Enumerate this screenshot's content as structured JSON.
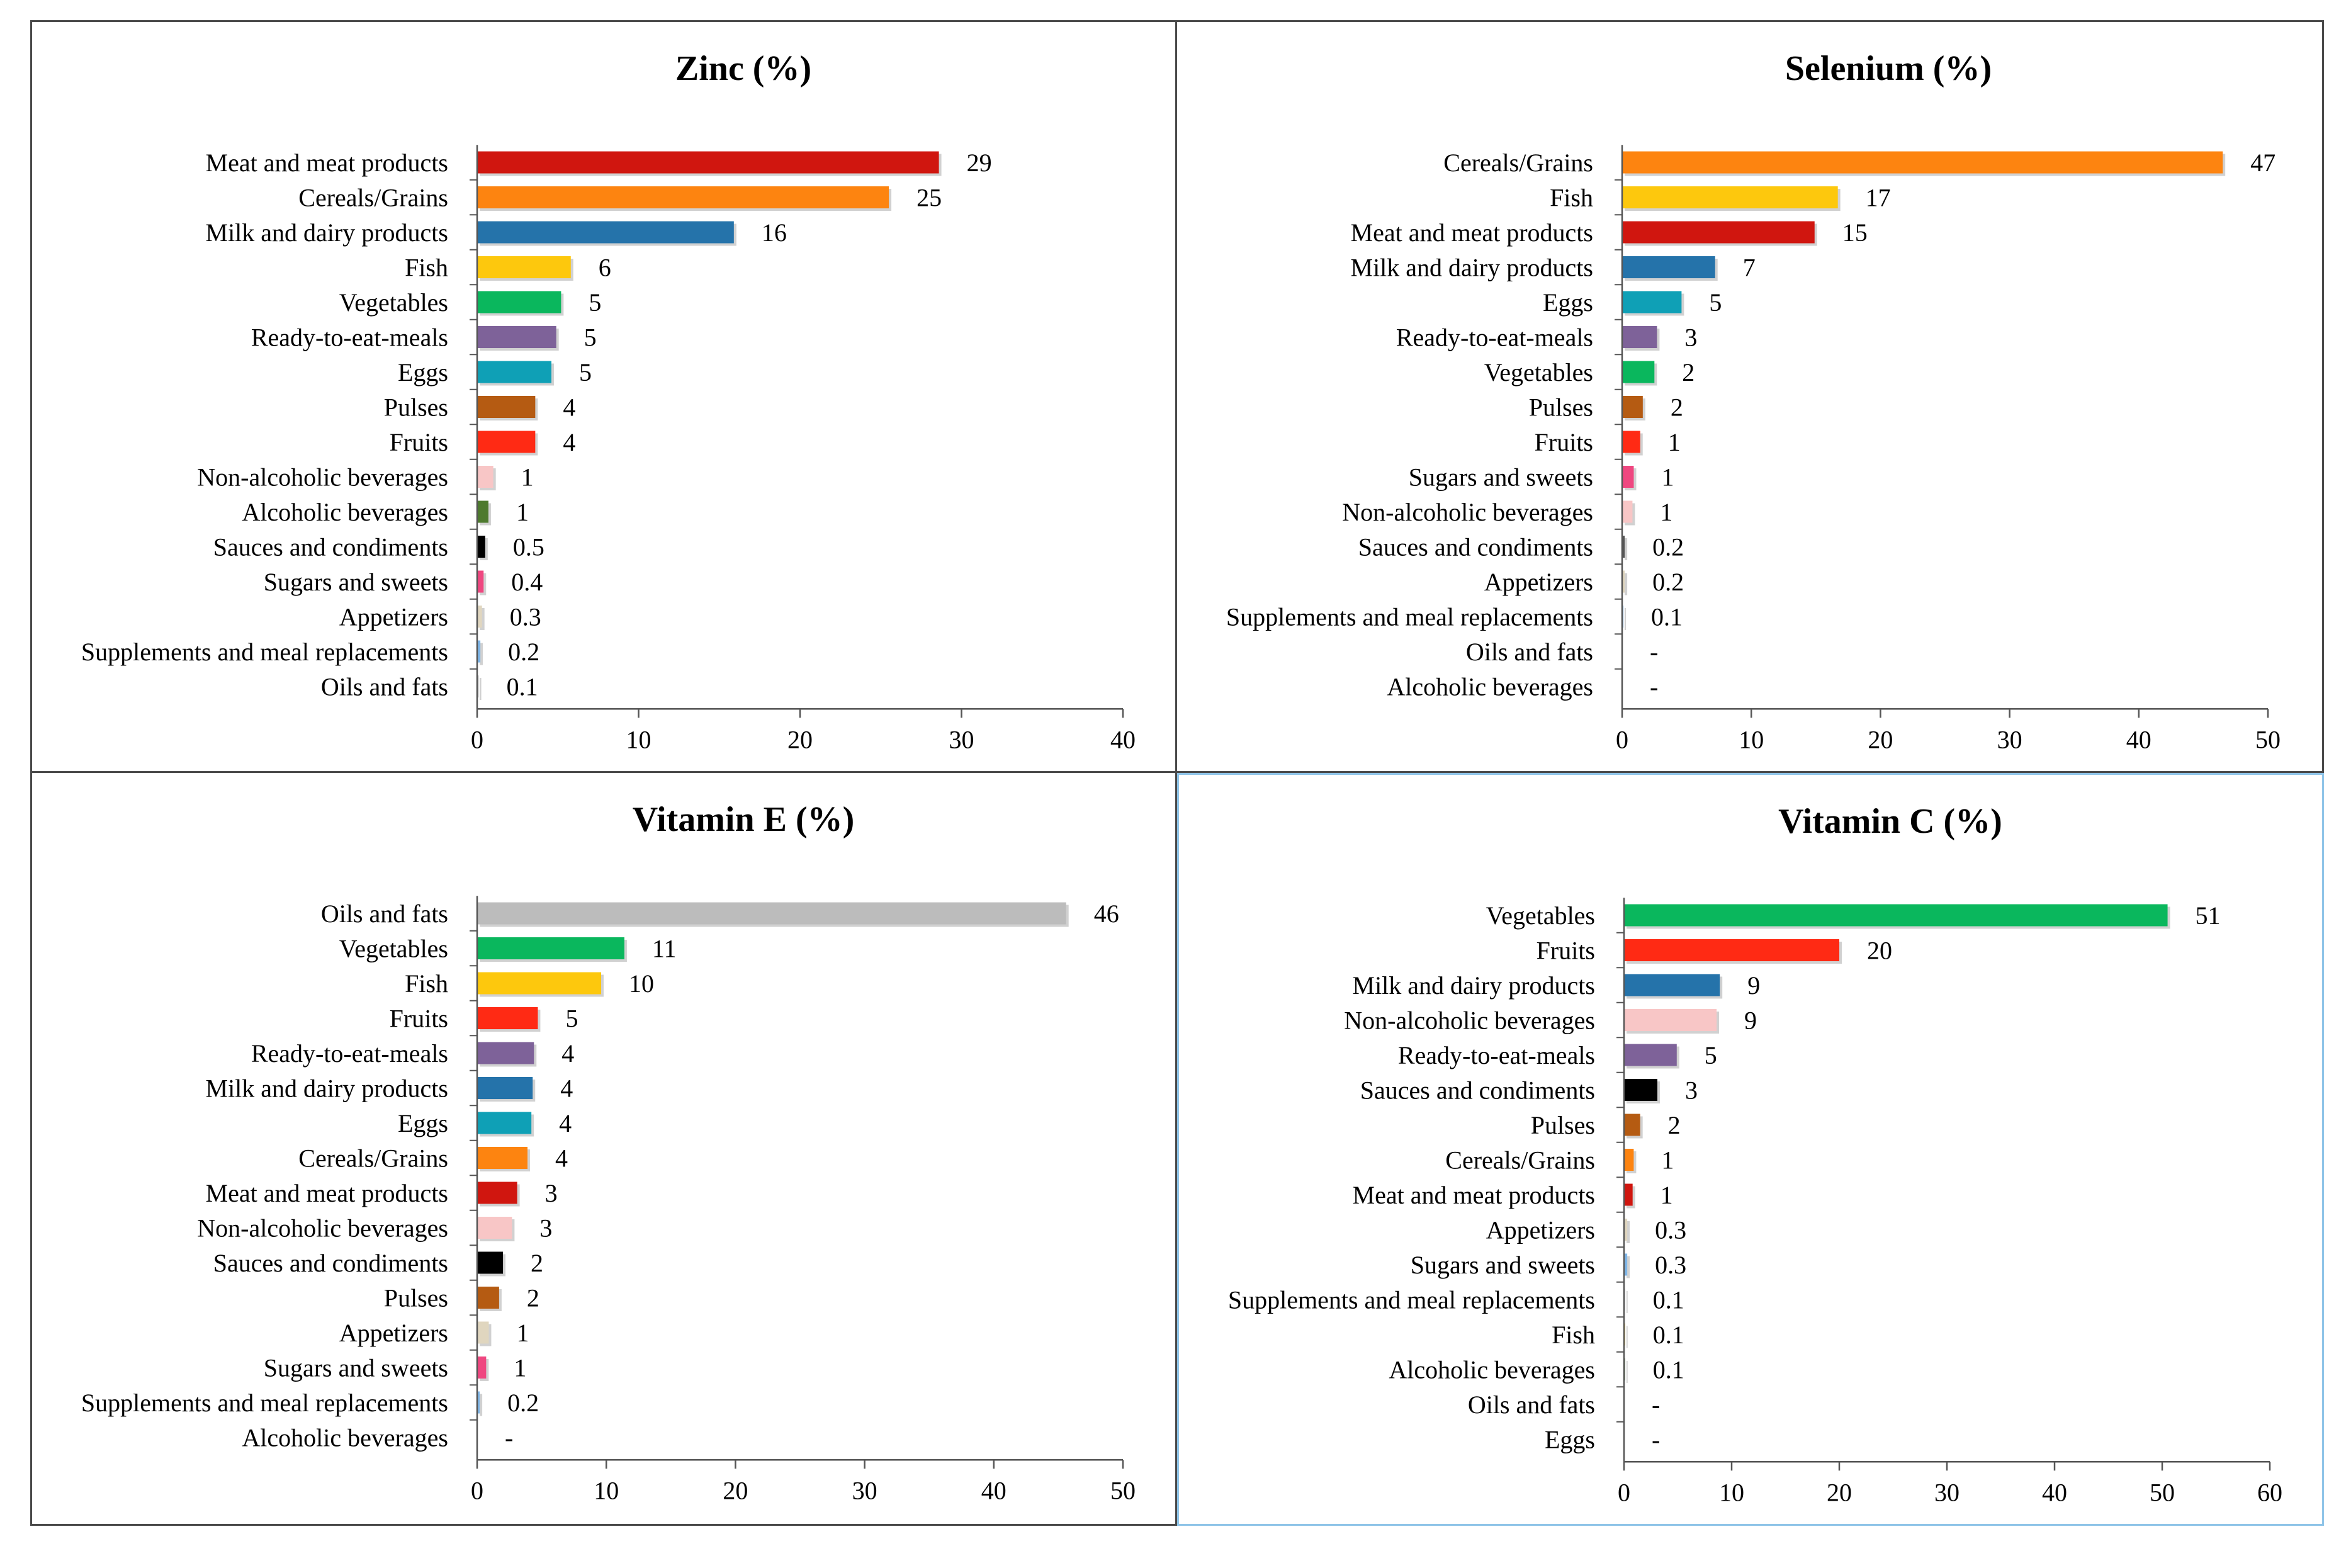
{
  "chart_data": [
    {
      "type": "bar",
      "orientation": "horizontal",
      "title": "Zinc (%)",
      "xlim": [
        0,
        40
      ],
      "xticks": [
        "0",
        "10",
        "20",
        "30",
        "40"
      ],
      "categories": [
        "Meat and meat products",
        "Cereals/Grains",
        "Milk and dairy products",
        "Fish",
        "Vegetables",
        "Ready-to-eat-meals",
        "Eggs",
        "Pulses",
        "Fruits",
        "Non-alcoholic beverages",
        "Alcoholic beverages",
        "Sauces and condiments",
        "Sugars and sweets",
        "Appetizers",
        "Supplements and meal replacements",
        "Oils and fats"
      ],
      "values": [
        28.6,
        25.5,
        15.9,
        5.8,
        5.2,
        4.9,
        4.6,
        3.6,
        3.6,
        1.0,
        0.7,
        0.5,
        0.4,
        0.3,
        0.2,
        0.1
      ],
      "labels": [
        "29",
        "25",
        "16",
        "6",
        "5",
        "5",
        "5",
        "4",
        "4",
        "1",
        "1",
        "0.5",
        "0.4",
        "0.3",
        "0.2",
        "0.1"
      ],
      "colors": [
        "#d0160f",
        "#fd8410",
        "#2573aa",
        "#fdc80d",
        "#0ab75d",
        "#7e6299",
        "#0fa0b6",
        "#b55b12",
        "#ff2a14",
        "#f8c6c6",
        "#4e7a2e",
        "#000000",
        "#ef4780",
        "#e0d6bf",
        "#7fb6e8",
        "#cccccc"
      ]
    },
    {
      "type": "bar",
      "orientation": "horizontal",
      "title": "Selenium (%)",
      "xlim": [
        0,
        50
      ],
      "xticks": [
        "0",
        "10",
        "20",
        "30",
        "40",
        "50"
      ],
      "categories": [
        "Cereals/Grains",
        "Fish",
        "Meat and meat products",
        "Milk and dairy products",
        "Eggs",
        "Ready-to-eat-meals",
        "Vegetables",
        "Pulses",
        "Fruits",
        "Sugars and sweets",
        "Non-alcoholic beverages",
        "Sauces and condiments",
        "Appetizers",
        "Supplements and meal replacements",
        "Oils and fats",
        "Alcoholic beverages"
      ],
      "values": [
        46.5,
        16.7,
        14.9,
        7.2,
        4.6,
        2.7,
        2.5,
        1.6,
        1.4,
        0.9,
        0.8,
        0.2,
        0.2,
        0.1,
        0,
        0
      ],
      "labels": [
        "47",
        "17",
        "15",
        "7",
        "5",
        "3",
        "2",
        "2",
        "1",
        "1",
        "1",
        "0.2",
        "0.2",
        "0.1",
        "-",
        "-"
      ],
      "colors": [
        "#fd8410",
        "#fdc80d",
        "#d0160f",
        "#2573aa",
        "#0fa0b6",
        "#7e6299",
        "#0ab75d",
        "#b55b12",
        "#ff2a14",
        "#ef4780",
        "#f8c6c6",
        "#555555",
        "#e0d6bf",
        "#7fb6e8",
        "#bbbbbb",
        "#4e7a2e"
      ]
    },
    {
      "type": "bar",
      "orientation": "horizontal",
      "title": "Vitamin E (%)",
      "xlim": [
        0,
        50
      ],
      "xticks": [
        "0",
        "10",
        "20",
        "30",
        "40",
        "50"
      ],
      "categories": [
        "Oils and fats",
        "Vegetables",
        "Fish",
        "Fruits",
        "Ready-to-eat-meals",
        "Milk and dairy products",
        "Eggs",
        "Cereals/Grains",
        "Meat and meat products",
        "Non-alcoholic beverages",
        "Sauces and condiments",
        "Pulses",
        "Appetizers",
        "Sugars and sweets",
        "Supplements and meal replacements",
        "Alcoholic beverages"
      ],
      "values": [
        45.6,
        11.4,
        9.6,
        4.7,
        4.4,
        4.3,
        4.2,
        3.9,
        3.1,
        2.7,
        2.0,
        1.7,
        0.9,
        0.7,
        0.2,
        0
      ],
      "labels": [
        "46",
        "11",
        "10",
        "5",
        "4",
        "4",
        "4",
        "4",
        "3",
        "3",
        "2",
        "2",
        "1",
        "1",
        "0.2",
        "-"
      ],
      "colors": [
        "#bcbcbc",
        "#0ab75d",
        "#fdc80d",
        "#ff2a14",
        "#7e6299",
        "#2573aa",
        "#0fa0b6",
        "#fd8410",
        "#d0160f",
        "#f8c6c6",
        "#000000",
        "#b55b12",
        "#e0d6bf",
        "#ef4780",
        "#7fb6e8",
        "#4e7a2e"
      ]
    },
    {
      "type": "bar",
      "orientation": "horizontal",
      "title": "Vitamin C (%)",
      "xlim": [
        0,
        60
      ],
      "xticks": [
        "0",
        "10",
        "20",
        "30",
        "40",
        "50",
        "60"
      ],
      "categories": [
        "Vegetables",
        "Fruits",
        "Milk and dairy products",
        "Non-alcoholic beverages",
        "Ready-to-eat-meals",
        "Sauces and condiments",
        "Pulses",
        "Cereals/Grains",
        "Meat and meat products",
        "Appetizers",
        "Sugars and sweets",
        "Supplements and meal replacements",
        "Fish",
        "Alcoholic beverages",
        "Oils and fats",
        "Eggs"
      ],
      "values": [
        50.5,
        20.0,
        8.9,
        8.6,
        4.9,
        3.1,
        1.5,
        0.9,
        0.8,
        0.3,
        0.3,
        0.1,
        0.1,
        0.1,
        0,
        0
      ],
      "labels": [
        "51",
        "20",
        "9",
        "9",
        "5",
        "3",
        "2",
        "1",
        "1",
        "0.3",
        "0.3",
        "0.1",
        "0.1",
        "0.1",
        "-",
        "-"
      ],
      "colors": [
        "#0ab75d",
        "#ff2a14",
        "#2573aa",
        "#f8c6c6",
        "#7e6299",
        "#000000",
        "#b55b12",
        "#fd8410",
        "#d0160f",
        "#e0d6bf",
        "#7fb6e8",
        "#cccccc",
        "#fdc80d",
        "#4e7a2e",
        "#bbbbbb",
        "#0fa0b6"
      ]
    }
  ]
}
